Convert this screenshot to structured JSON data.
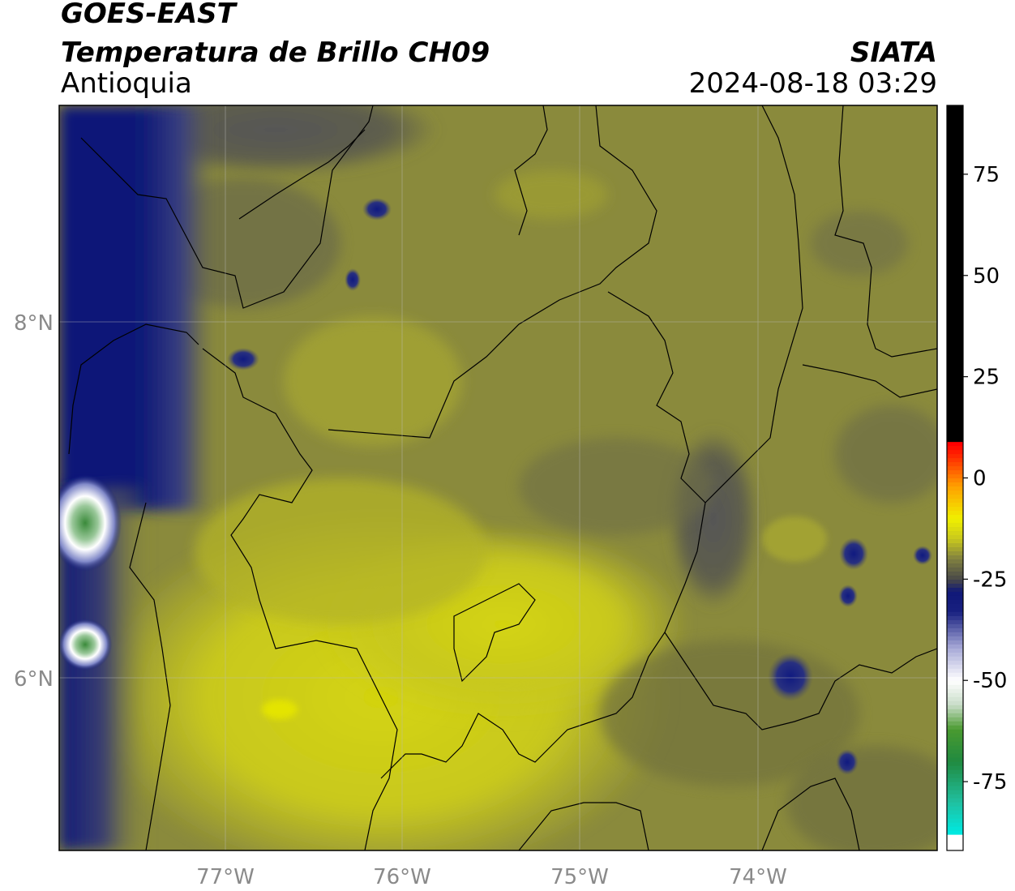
{
  "header": {
    "satellite": "GOES-EAST",
    "product": "Temperatura de Brillo CH09",
    "region": "Antioquia",
    "agency": "SIATA",
    "timestamp": "2024-08-18 03:29"
  },
  "map": {
    "x_axis_labels": [
      "77°W",
      "76°W",
      "75°W",
      "74°W"
    ],
    "y_axis_labels": [
      "8°N",
      "6°N"
    ],
    "lon_range": [
      -77.95,
      -73.05
    ],
    "lat_range": [
      4.95,
      9.15
    ],
    "grid": true,
    "colors": {
      "warm_yellow": "#c8c81e",
      "olive": "#8a8a3a",
      "gray": "#585858",
      "deep_blue": "#101a78",
      "white": "#ffffff",
      "green": "#3a8a3a"
    }
  },
  "colorbar": {
    "ticks": [
      "75",
      "50",
      "25",
      "0",
      "-25",
      "-50",
      "-75"
    ],
    "tick_values": [
      75,
      50,
      25,
      0,
      -25,
      -50,
      -75
    ],
    "range": [
      -92,
      92
    ],
    "unit": "",
    "stops": [
      {
        "v": -92,
        "c": "#ffffff"
      },
      {
        "v": -88,
        "c": "#ffffff"
      },
      {
        "v": -87.5,
        "c": "#00e8e0"
      },
      {
        "v": -80,
        "c": "#20c0a0"
      },
      {
        "v": -70,
        "c": "#208a40"
      },
      {
        "v": -62,
        "c": "#4a9a30"
      },
      {
        "v": -56,
        "c": "#c8dcc8"
      },
      {
        "v": -50,
        "c": "#ffffff"
      },
      {
        "v": -42,
        "c": "#a8aad8"
      },
      {
        "v": -33,
        "c": "#182080"
      },
      {
        "v": -28,
        "c": "#101878"
      },
      {
        "v": -25,
        "c": "#484848"
      },
      {
        "v": -20,
        "c": "#808040"
      },
      {
        "v": -15,
        "c": "#c8c81e"
      },
      {
        "v": -10,
        "c": "#f0f000"
      },
      {
        "v": -2,
        "c": "#ffa000"
      },
      {
        "v": 6,
        "c": "#ff2000"
      },
      {
        "v": 8.5,
        "c": "#ff0000"
      },
      {
        "v": 9,
        "c": "#000000"
      },
      {
        "v": 92,
        "c": "#000000"
      }
    ]
  }
}
